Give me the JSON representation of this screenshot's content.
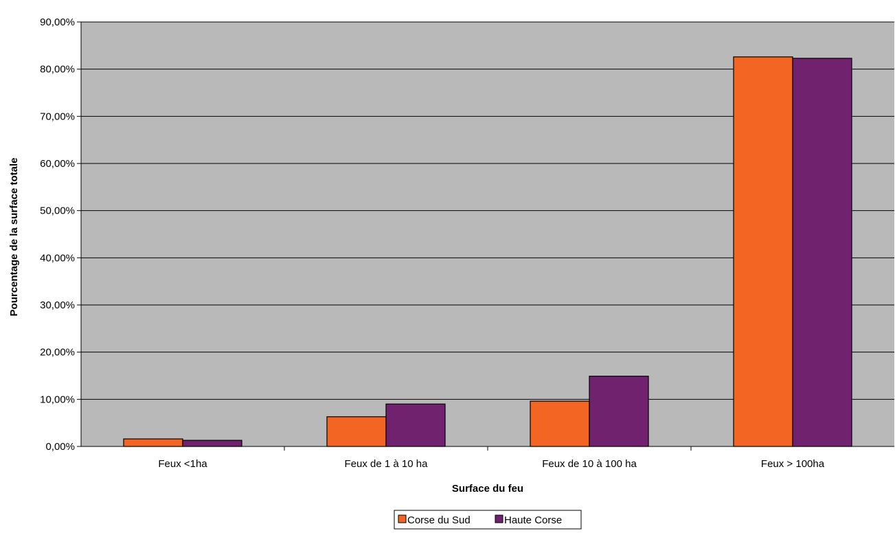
{
  "chart_data": {
    "type": "bar",
    "title": "",
    "xlabel": "Surface du feu",
    "ylabel": "Pourcentage de la surface totale",
    "categories": [
      "Feux <1ha",
      "Feux de 1 à 10 ha",
      "Feux de 10 à 100 ha",
      "Feux > 100ha"
    ],
    "series": [
      {
        "name": "Corse du Sud",
        "color": "#f26522",
        "values": [
          1.6,
          6.3,
          9.6,
          82.6
        ]
      },
      {
        "name": "Haute Corse",
        "color": "#71226f",
        "values": [
          1.3,
          9.0,
          14.9,
          82.3
        ]
      }
    ],
    "ylim": [
      0,
      90
    ],
    "yticks": [
      0,
      10,
      20,
      30,
      40,
      50,
      60,
      70,
      80,
      90
    ],
    "ytick_labels": [
      "0,00%",
      "10,00%",
      "20,00%",
      "30,00%",
      "40,00%",
      "50,00%",
      "60,00%",
      "70,00%",
      "80,00%",
      "90,00%"
    ],
    "grid": true,
    "plot_background": "#b9b9b9",
    "legend_position": "bottom-center"
  }
}
